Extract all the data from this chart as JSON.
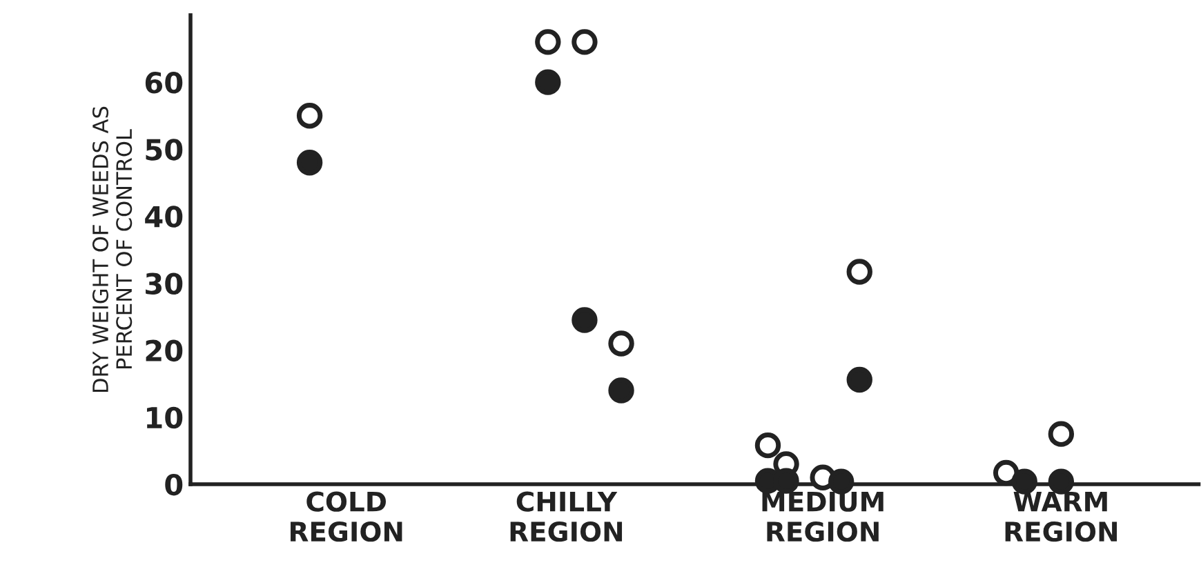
{
  "chart_data": {
    "type": "scatter",
    "ylabel": "DRY WEIGHT OF WEEDS AS\nPERCENT OF CONTROL",
    "ylim": [
      0,
      70
    ],
    "yticks": [
      0,
      10,
      20,
      30,
      40,
      50,
      60
    ],
    "categories": [
      null,
      null,
      null,
      null,
      null,
      null,
      null,
      null,
      "COLD\nREGION",
      null,
      null,
      null,
      null,
      null,
      null,
      null,
      null,
      null,
      null,
      null,
      "CHILLY\nREGION",
      null,
      null,
      null,
      null,
      null,
      null,
      null,
      null,
      null,
      null,
      null,
      null,
      null,
      "MEDIUM\nREGION",
      null,
      null,
      null,
      null,
      null,
      null,
      null,
      null,
      null,
      null,
      null,
      null,
      "WARM\nREGION",
      null,
      null,
      null,
      null,
      null,
      null,
      null
    ],
    "grid": false,
    "marker": "circle",
    "series": [
      {
        "color": "#ffffff",
        "values": [
          null,
          null,
          null,
          null,
          null,
          null,
          55,
          null,
          null,
          null,
          null,
          null,
          null,
          null,
          null,
          null,
          null,
          null,
          null,
          66,
          null,
          66,
          null,
          21,
          null,
          null,
          null,
          null,
          null,
          null,
          null,
          5.8,
          3,
          null,
          1,
          null,
          31.7,
          null,
          null,
          null,
          null,
          null,
          null,
          null,
          1.7,
          null,
          null,
          7.5,
          null,
          null,
          null,
          null,
          null,
          null,
          null
        ]
      },
      {
        "color": "#222222",
        "values": [
          null,
          null,
          null,
          null,
          null,
          null,
          48,
          null,
          null,
          null,
          null,
          null,
          null,
          null,
          null,
          null,
          null,
          null,
          null,
          60,
          null,
          24.5,
          null,
          14,
          null,
          null,
          null,
          null,
          null,
          null,
          null,
          0.5,
          0.5,
          null,
          null,
          0.4,
          15.6,
          null,
          null,
          null,
          null,
          null,
          null,
          null,
          null,
          0.4,
          null,
          0.4,
          null,
          null,
          null,
          null,
          null,
          null,
          null
        ]
      }
    ]
  }
}
